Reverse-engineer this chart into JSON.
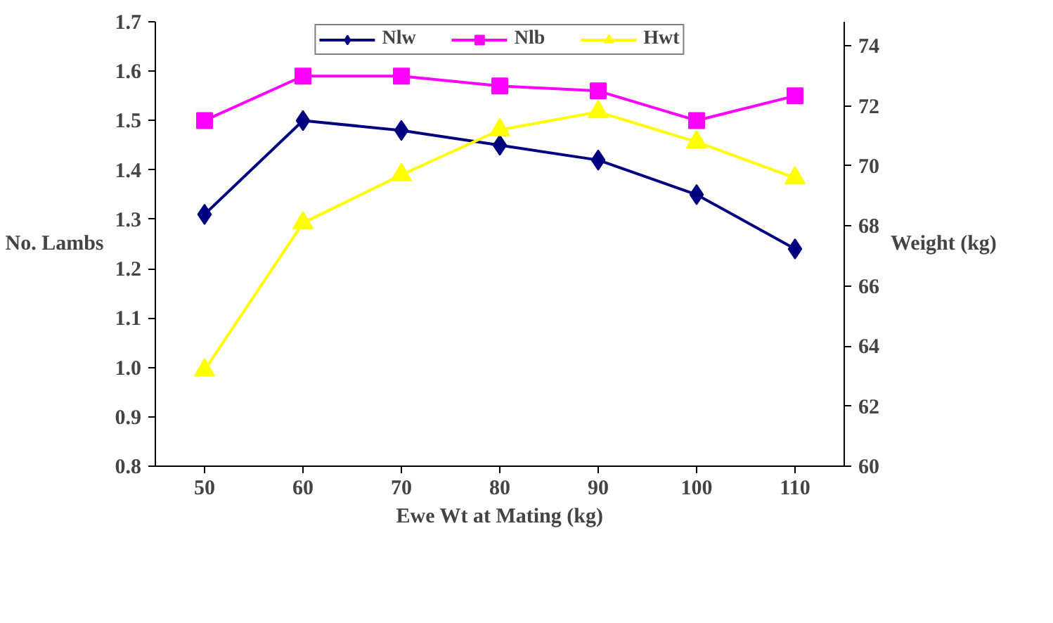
{
  "chart_data": {
    "type": "line",
    "xlabel": "Ewe Wt at Mating (kg)",
    "ylabel": "No. Lambs",
    "y2label": "Weight (kg)",
    "categories": [
      "50",
      "60",
      "70",
      "80",
      "90",
      "100",
      "110"
    ],
    "ylim": [
      0.8,
      1.7
    ],
    "yticks": [
      {
        "value": 0.8,
        "label": "0.8"
      },
      {
        "value": 0.9,
        "label": "0.9"
      },
      {
        "value": 1.0,
        "label": "1.0"
      },
      {
        "value": 1.1,
        "label": "1.1"
      },
      {
        "value": 1.2,
        "label": "1.2"
      },
      {
        "value": 1.3,
        "label": "1.3"
      },
      {
        "value": 1.4,
        "label": "1.4"
      },
      {
        "value": 1.5,
        "label": "1.5"
      },
      {
        "value": 1.6,
        "label": "1.6"
      },
      {
        "value": 1.7,
        "label": "1.7"
      }
    ],
    "y2lim": [
      60,
      74.8
    ],
    "y2ticks": [
      60,
      62,
      64,
      66,
      68,
      70,
      72,
      74
    ],
    "grid": false,
    "legend": "top",
    "line_style": "solid",
    "series": [
      {
        "name": "Nlw",
        "color": "#000080",
        "marker": "diamond",
        "values": [
          1.31,
          1.5,
          1.48,
          1.45,
          1.42,
          1.35,
          1.24
        ]
      },
      {
        "name": "Nlb",
        "color": "#ff00ff",
        "marker": "square",
        "values": [
          1.5,
          1.59,
          1.59,
          1.57,
          1.56,
          1.5,
          1.55
        ]
      },
      {
        "name": "Hwt",
        "color": "#ffff00",
        "marker": "triangle",
        "axis": "y2",
        "values": [
          63.2,
          68.1,
          69.7,
          71.2,
          71.8,
          70.8,
          69.6
        ]
      }
    ]
  }
}
